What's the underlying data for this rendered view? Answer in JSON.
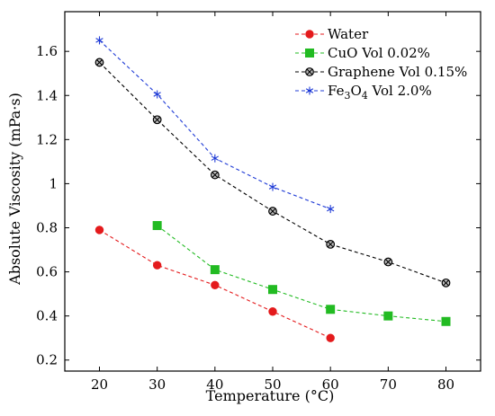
{
  "chart_data": {
    "type": "line",
    "title": "",
    "xlabel": "Temperature (°C)",
    "ylabel": "Absolute Viscosity (mPa·s)",
    "xlim": [
      14,
      86
    ],
    "ylim": [
      0.15,
      1.78
    ],
    "xticks": [
      20,
      30,
      40,
      50,
      60,
      70,
      80
    ],
    "yticks": [
      0.2,
      0.4,
      0.6,
      0.8,
      1,
      1.2,
      1.4,
      1.6
    ],
    "ytick_labels": [
      "0.2",
      "0.4",
      "0.6",
      "0.8",
      "1",
      "1.2",
      "1.4",
      "1.6"
    ],
    "grid": false,
    "legend_position": "top-right",
    "series": [
      {
        "name": "Water",
        "color": "#e41a1c",
        "marker": "circle",
        "line": "dashed",
        "x": [
          20,
          30,
          40,
          50,
          60
        ],
        "y": [
          0.79,
          0.63,
          0.54,
          0.42,
          0.3
        ]
      },
      {
        "name": "CuO Vol 0.02%",
        "color": "#22bb22",
        "marker": "square",
        "line": "dashed",
        "x": [
          30,
          40,
          50,
          60,
          70,
          80
        ],
        "y": [
          0.81,
          0.61,
          0.52,
          0.43,
          0.4,
          0.375
        ]
      },
      {
        "name": "Graphene Vol 0.15%",
        "color": "#000000",
        "marker": "circle-x",
        "line": "dashed",
        "x": [
          20,
          30,
          40,
          50,
          60,
          70,
          80
        ],
        "y": [
          1.55,
          1.29,
          1.04,
          0.875,
          0.725,
          0.645,
          0.55
        ]
      },
      {
        "name": "Fe3O4 Vol 2.0%",
        "color": "#1f3bd6",
        "marker": "star",
        "line": "dashed",
        "x": [
          20,
          30,
          40,
          50,
          60
        ],
        "y": [
          1.65,
          1.405,
          1.115,
          0.985,
          0.885
        ]
      }
    ]
  }
}
